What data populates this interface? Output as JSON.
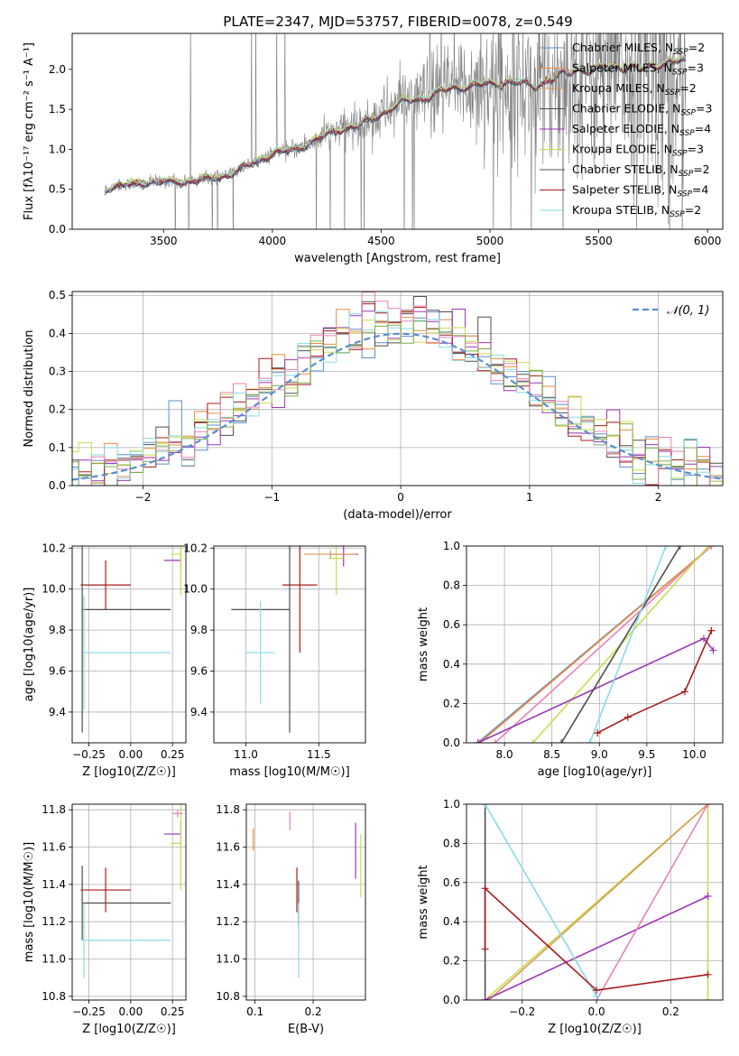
{
  "figure": {
    "title": "PLATE=2347, MJD=53757, FIBERID=0078, z=0.549"
  },
  "colors": {
    "Chabrier MILES": "#5b8fd1",
    "Salpeter MILES": "#ee8a3e",
    "Kroupa MILES": "#d89a5a",
    "Chabrier ELODIE": "#4e4e4e",
    "Salpeter ELODIE": "#9b36b3",
    "Kroupa ELODIE": "#c9dc4e",
    "Chabrier STELIB": "#4d4d4d",
    "Salpeter STELIB": "#a51c1c",
    "Kroupa STELIB": "#88dbe5",
    "data": "#808080",
    "pink": "#e682b6",
    "normal": "#5b8fd1"
  },
  "chart_data": [
    {
      "id": "spectrum",
      "type": "line",
      "xlabel": "wavelength [Angstrom, rest frame]",
      "ylabel": "Flux [fλ10⁻¹⁷ erg cm⁻² s⁻¹ A⁻¹]",
      "xlim": [
        3080,
        6070
      ],
      "ylim": [
        0,
        2.45
      ],
      "xticks": [
        "3500",
        "4000",
        "4500",
        "5000",
        "5500",
        "6000"
      ],
      "yticks": [
        "0.0",
        "0.5",
        "1.0",
        "1.5",
        "2.0"
      ],
      "legend_position": "top-right",
      "legend": [
        {
          "label": "Chabrier MILES, N_SSP=2",
          "color": "#5b8fd1"
        },
        {
          "label": "Salpeter MILES, N_SSP=3",
          "color": "#ee8a3e"
        },
        {
          "label": "Kroupa MILES, N_SSP=2",
          "color": "#d89a5a"
        },
        {
          "label": "Chabrier ELODIE, N_SSP=3",
          "color": "#4e4e4e"
        },
        {
          "label": "Salpeter ELODIE, N_SSP=4",
          "color": "#9b36b3"
        },
        {
          "label": "Kroupa ELODIE, N_SSP=3",
          "color": "#c9dc4e"
        },
        {
          "label": "Chabrier STELIB, N_SSP=2",
          "color": "#4d4d4d"
        },
        {
          "label": "Salpeter STELIB, N_SSP=4",
          "color": "#a51c1c"
        },
        {
          "label": "Kroupa STELIB, N_SSP=2",
          "color": "#88dbe5"
        }
      ],
      "model_continuum": {
        "x": [
          3230,
          3300,
          3400,
          3500,
          3600,
          3700,
          3800,
          3900,
          4000,
          4100,
          4200,
          4300,
          4400,
          4500,
          4600,
          4700,
          4800,
          4900,
          5000,
          5100,
          5200,
          5300,
          5400,
          5500,
          5600,
          5700,
          5800
        ],
        "y": [
          0.5,
          0.55,
          0.58,
          0.6,
          0.6,
          0.63,
          0.68,
          0.82,
          0.95,
          1.0,
          1.12,
          1.25,
          1.3,
          1.45,
          1.6,
          1.65,
          1.75,
          1.8,
          1.82,
          1.85,
          1.8,
          1.9,
          2.0,
          2.0,
          2.05,
          2.0,
          2.1
        ]
      }
    },
    {
      "id": "residuals",
      "type": "line",
      "xlabel": "(data-model)/error",
      "ylabel": "Normed distribution",
      "xlim": [
        -2.55,
        2.5
      ],
      "ylim": [
        0,
        0.51
      ],
      "xticks": [
        "−2",
        "−1",
        "0",
        "1",
        "2"
      ],
      "yticks": [
        "0.0",
        "0.1",
        "0.2",
        "0.3",
        "0.4",
        "0.5"
      ],
      "legend": [
        {
          "label": "𝒩(0, 1)",
          "color": "#5b8fd1"
        }
      ],
      "legend_position": "top-right",
      "histogram_bin_width": 0.1
    },
    {
      "id": "age_vs_Z",
      "type": "scatter",
      "xlabel": "Z [log10(Z/Z☉)]",
      "ylabel": "age  [log10(age/yr)]",
      "xlim": [
        -0.35,
        0.33
      ],
      "ylim": [
        9.25,
        10.21
      ],
      "xticks": [
        "−0.25",
        "0.00",
        "0.25"
      ],
      "yticks": [
        "9.4",
        "9.6",
        "9.8",
        "10.0",
        "10.2"
      ],
      "points": [
        {
          "model": "Salpeter STELIB",
          "x": -0.15,
          "y": 10.02,
          "xerr": 0.15,
          "yerr": 0.12
        },
        {
          "model": "Chabrier STELIB",
          "x": -0.29,
          "y": 9.9,
          "xerr_hi": 0.53,
          "yerr": 0.6
        },
        {
          "model": "Kroupa STELIB",
          "x": -0.28,
          "y": 9.69,
          "xerr_hi": 0.52,
          "yerr": 0.28
        },
        {
          "model": "Salpeter ELODIE",
          "x": 0.3,
          "y": 10.14,
          "xerr_lo": 0.1,
          "yerr": 0.05
        },
        {
          "model": "Kroupa ELODIE",
          "x": 0.3,
          "y": 10.17,
          "xerr_lo": 0.06,
          "yerr": 0.2
        }
      ]
    },
    {
      "id": "age_vs_mass",
      "type": "scatter",
      "xlabel": "mass [log10(M/M☉)]",
      "ylabel": "",
      "xlim": [
        10.78,
        11.82
      ],
      "ylim": [
        9.25,
        10.21
      ],
      "xticks": [
        "11.0",
        "11.5"
      ],
      "yticks": [
        "9.4",
        "9.6",
        "9.8",
        "10.0",
        "10.2"
      ],
      "points": [
        {
          "model": "Salpeter STELIB",
          "x": 11.37,
          "y": 10.02,
          "xerr": 0.12,
          "yerr": 0.33
        },
        {
          "model": "Chabrier STELIB",
          "x": 11.3,
          "y": 9.9,
          "xerr_lo": 0.4,
          "yerr": 0.6
        },
        {
          "model": "Kroupa STELIB",
          "x": 11.1,
          "y": 9.69,
          "xerr": 0.1,
          "yerr": 0.25
        },
        {
          "model": "Salpeter ELODIE",
          "x": 11.67,
          "y": 10.17,
          "xerr": 0.1,
          "yerr": 0.06
        },
        {
          "model": "Kroupa ELODIE",
          "x": 11.62,
          "y": 10.15,
          "xerr": 0.05,
          "yerr": 0.18
        },
        {
          "model": "Kroupa MILES",
          "x": 11.58,
          "y": 10.17,
          "xerr": 0.18,
          "yerr": 0.02
        }
      ]
    },
    {
      "id": "weight_vs_age",
      "type": "line",
      "xlabel": "age  [log10(age/yr)]",
      "ylabel": "mass weight",
      "xlim": [
        7.6,
        10.3
      ],
      "ylim": [
        0,
        1
      ],
      "xticks": [
        "8.0",
        "8.5",
        "9.0",
        "9.5",
        "10.0"
      ],
      "yticks": [
        "0.0",
        "0.2",
        "0.4",
        "0.6",
        "0.8",
        "1.0"
      ],
      "series": [
        {
          "model": "Chabrier MILES",
          "x": [
            7.72,
            10.18
          ],
          "y": [
            0,
            1
          ]
        },
        {
          "model": "Salpeter MILES",
          "x": [
            7.74,
            10.18
          ],
          "y": [
            0,
            1
          ]
        },
        {
          "model": "pink",
          "x": [
            7.9,
            10.18
          ],
          "y": [
            0,
            1
          ]
        },
        {
          "model": "Kroupa ELODIE",
          "x": [
            8.3,
            10.15
          ],
          "y": [
            0,
            1
          ]
        },
        {
          "model": "Salpeter ELODIE",
          "x": [
            7.72,
            10.1,
            10.2
          ],
          "y": [
            0,
            0.53,
            0.47
          ]
        },
        {
          "model": "Chabrier ELODIE",
          "x": [
            8.6,
            9.85
          ],
          "y": [
            0,
            1
          ]
        },
        {
          "model": "Kroupa STELIB",
          "x": [
            8.9,
            9.7
          ],
          "y": [
            0,
            1
          ]
        },
        {
          "model": "Salpeter STELIB",
          "x": [
            8.98,
            9.3,
            9.9,
            10.18
          ],
          "y": [
            0.05,
            0.13,
            0.26,
            0.57
          ]
        }
      ]
    },
    {
      "id": "mass_vs_Z",
      "type": "scatter",
      "xlabel": "Z [log10(Z/Z☉)]",
      "ylabel": "mass [log10(M/M☉)]",
      "xlim": [
        -0.35,
        0.33
      ],
      "ylim": [
        10.78,
        11.83
      ],
      "xticks": [
        "−0.25",
        "0.00",
        "0.25"
      ],
      "yticks": [
        "10.8",
        "11.0",
        "11.2",
        "11.4",
        "11.6",
        "11.8"
      ],
      "points": [
        {
          "model": "Salpeter STELIB",
          "x": -0.15,
          "y": 11.37,
          "xerr": 0.15,
          "yerr": 0.12
        },
        {
          "model": "Chabrier STELIB",
          "x": -0.29,
          "y": 11.3,
          "xerr_hi": 0.53,
          "yerr": 0.2
        },
        {
          "model": "Kroupa STELIB",
          "x": -0.28,
          "y": 11.1,
          "xerr_hi": 0.52,
          "yerr": 0.2
        },
        {
          "model": "Salpeter ELODIE",
          "x": 0.3,
          "y": 11.67,
          "xerr_lo": 0.1,
          "yerr": 0.06
        },
        {
          "model": "Kroupa ELODIE",
          "x": 0.3,
          "y": 11.62,
          "xerr_lo": 0.06,
          "yerr": 0.25
        },
        {
          "model": "pink",
          "x": 0.28,
          "y": 11.78,
          "xerr": 0.03,
          "yerr": 0.02
        }
      ]
    },
    {
      "id": "mass_vs_ebv",
      "type": "scatter",
      "xlabel": "E(B-V)",
      "ylabel": "",
      "xlim": [
        0.085,
        0.29
      ],
      "ylim": [
        10.78,
        11.83
      ],
      "xticks": [
        "0.1",
        "0.2"
      ],
      "yticks": [
        "10.8",
        "11.0",
        "11.2",
        "11.4",
        "11.6",
        "11.8"
      ],
      "points": [
        {
          "model": "Salpeter STELIB",
          "x": 0.172,
          "y": 11.37,
          "yerr": 0.12
        },
        {
          "model": "Chabrier STELIB",
          "x": 0.175,
          "y": 11.3,
          "yerr": 0.12
        },
        {
          "model": "Kroupa STELIB",
          "x": 0.175,
          "y": 11.1,
          "yerr": 0.2
        },
        {
          "model": "Salpeter MILES",
          "x": 0.097,
          "y": 11.64,
          "yerr": 0.06
        },
        {
          "model": "pink",
          "x": 0.16,
          "y": 11.74,
          "yerr": 0.05
        },
        {
          "model": "Salpeter ELODIE",
          "x": 0.273,
          "y": 11.58,
          "yerr": 0.15
        },
        {
          "model": "Kroupa ELODIE",
          "x": 0.282,
          "y": 11.5,
          "yerr": 0.17
        }
      ]
    },
    {
      "id": "weight_vs_Z",
      "type": "line",
      "xlabel": "Z [log10(Z/Z☉)]",
      "ylabel": "mass weight",
      "xlim": [
        -0.35,
        0.34
      ],
      "ylim": [
        0,
        1
      ],
      "xticks": [
        "−0.2",
        "0.0",
        "0.2"
      ],
      "yticks": [
        "0.0",
        "0.2",
        "0.4",
        "0.6",
        "0.8",
        "1.0"
      ],
      "series": [
        {
          "model": "Chabrier ELODIE",
          "x": [
            -0.3,
            -0.3
          ],
          "y": [
            0,
            1
          ]
        },
        {
          "model": "Kroupa ELODIE",
          "x": [
            -0.3,
            0.3,
            0.3
          ],
          "y": [
            0,
            1,
            0
          ]
        },
        {
          "model": "Kroupa MILES",
          "x": [
            -0.29,
            0.3
          ],
          "y": [
            0,
            1
          ]
        },
        {
          "model": "Salpeter ELODIE",
          "x": [
            -0.3,
            0.3
          ],
          "y": [
            0,
            0.53
          ]
        },
        {
          "model": "pink",
          "x": [
            0.0,
            0.3
          ],
          "y": [
            0,
            1
          ]
        },
        {
          "model": "Kroupa STELIB",
          "x": [
            -0.3,
            0.0
          ],
          "y": [
            1,
            0.02
          ]
        },
        {
          "model": "Salpeter STELIB",
          "x": [
            -0.3,
            -0.3,
            0.0,
            0.3
          ],
          "y": [
            0.26,
            0.57,
            0.05,
            0.13
          ]
        }
      ]
    }
  ]
}
